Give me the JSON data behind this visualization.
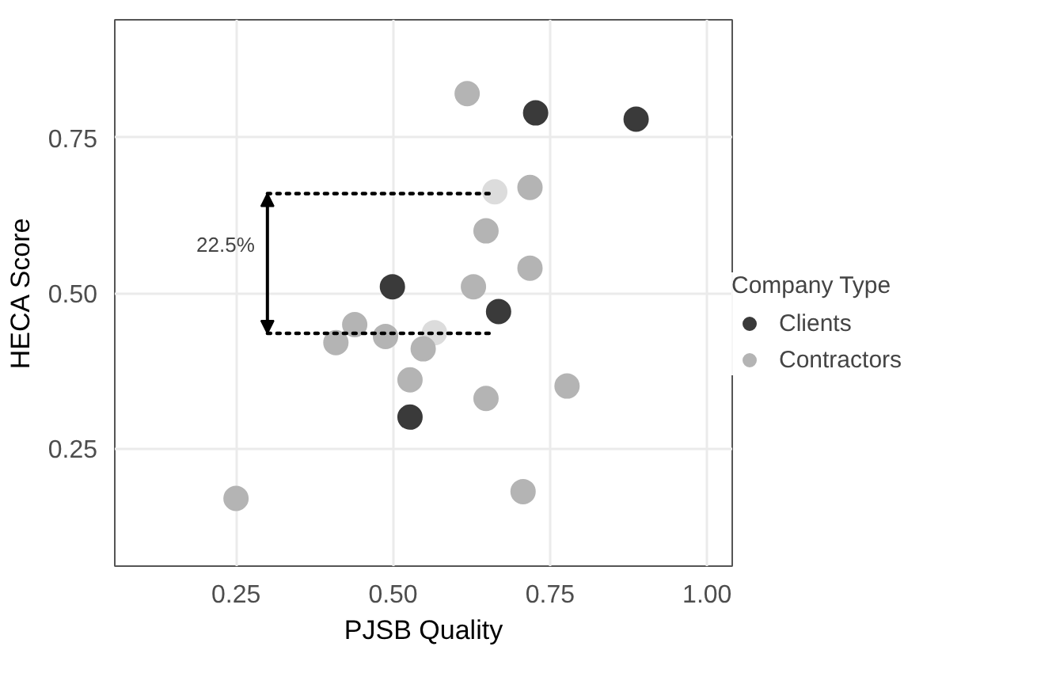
{
  "chart_data": {
    "type": "scatter",
    "xlabel": "PJSB Quality",
    "ylabel": "HECA Score",
    "legend_title": "Company Type",
    "xlim": [
      0.057,
      1.04
    ],
    "ylim": [
      0.06,
      0.94
    ],
    "xticks": [
      0.25,
      {
        "value": 0.5,
        "label": "0.50"
      },
      0.75,
      {
        "value": 1.0,
        "label": "1.00"
      }
    ],
    "yticks": [
      0.25,
      {
        "value": 0.5,
        "label": "0.50"
      },
      0.75
    ],
    "grid": true,
    "legend": "right",
    "marker": "circle",
    "series": [
      {
        "name": "Clients",
        "color": "#3a3a3a",
        "x": [
          0.727,
          0.887,
          0.499,
          0.668,
          0.527
        ],
        "values": [
          0.79,
          0.78,
          0.51,
          0.47,
          0.3
        ]
      },
      {
        "name": "Contractors",
        "color": "#b4b4b4",
        "x": [
          0.618,
          0.662,
          0.718,
          0.648,
          0.718,
          0.628,
          0.439,
          0.409,
          0.488,
          0.566,
          0.548,
          0.527,
          0.648,
          0.777,
          0.25,
          0.707
        ],
        "values": [
          0.821,
          0.663,
          0.67,
          0.6,
          0.54,
          0.51,
          0.449,
          0.42,
          0.43,
          0.436,
          0.41,
          0.36,
          0.33,
          0.35,
          0.169,
          0.18
        ],
        "colors": [
          "#b4b4b4",
          "#dcdcdc",
          "#b4b4b4",
          "#b4b4b4",
          "#b4b4b4",
          "#b4b4b4",
          "#b4b4b4",
          "#b4b4b4",
          "#b4b4b4",
          "#dcdcdc",
          "#b4b4b4",
          "#b4b4b4",
          "#b4b4b4",
          "#b4b4b4",
          "#b4b4b4",
          "#b4b4b4"
        ]
      },
      {
        "type": "line",
        "line_style": "dotted",
        "marker": "none",
        "color": "#000000",
        "x": [
          0.3,
          0.66
        ],
        "values": [
          0.66,
          0.66
        ]
      },
      {
        "type": "line",
        "line_style": "dotted",
        "marker": "none",
        "color": "#000000",
        "x": [
          0.3,
          0.66
        ],
        "values": [
          0.435,
          0.435
        ]
      }
    ],
    "annotations": [
      "22.5%"
    ]
  }
}
